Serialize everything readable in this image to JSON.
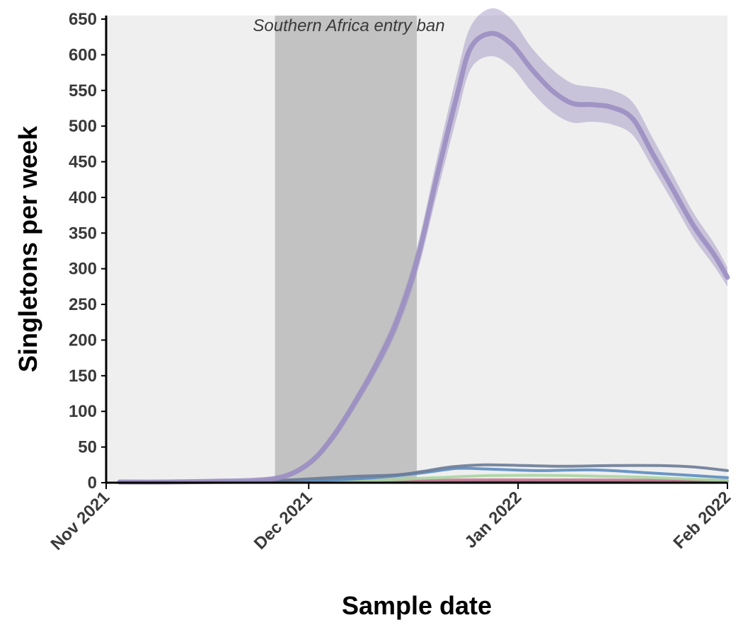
{
  "chart_data": {
    "type": "line",
    "xlabel": "Sample date",
    "ylabel": "Singletons per week",
    "x_ticks": [
      "Nov 2021",
      "Dec 2021",
      "Jan 2022",
      "Feb 2022"
    ],
    "x_range": [
      "2021-11-01",
      "2022-02-01"
    ],
    "y_ticks": [
      0,
      50,
      100,
      150,
      200,
      250,
      300,
      350,
      400,
      450,
      500,
      550,
      600,
      650
    ],
    "ylim": [
      0,
      650
    ],
    "grid": false,
    "shaded_region": {
      "label": "Southern Africa entry ban",
      "start": "2021-11-26",
      "end": "2021-12-17"
    },
    "series": [
      {
        "color": "#9b8fc2",
        "x": [
          "2021-11-03",
          "2021-11-10",
          "2021-11-17",
          "2021-11-22",
          "2021-11-26",
          "2021-11-29",
          "2021-12-02",
          "2021-12-05",
          "2021-12-08",
          "2021-12-11",
          "2021-12-14",
          "2021-12-17",
          "2021-12-20",
          "2021-12-23",
          "2021-12-25",
          "2021-12-28",
          "2021-12-31",
          "2022-01-03",
          "2022-01-06",
          "2022-01-09",
          "2022-01-12",
          "2022-01-15",
          "2022-01-18",
          "2022-01-21",
          "2022-01-24",
          "2022-01-27",
          "2022-01-30",
          "2022-02-01"
        ],
        "values": [
          1,
          1,
          2,
          3,
          6,
          15,
          35,
          70,
          115,
          165,
          225,
          310,
          430,
          545,
          610,
          630,
          615,
          580,
          550,
          532,
          530,
          526,
          510,
          460,
          410,
          360,
          320,
          288
        ],
        "lower": [
          0,
          0,
          1,
          2,
          4,
          11,
          30,
          63,
          107,
          155,
          212,
          292,
          405,
          515,
          580,
          598,
          583,
          548,
          520,
          505,
          506,
          502,
          487,
          440,
          392,
          343,
          304,
          275
        ],
        "upper": [
          2,
          2,
          3,
          4,
          8,
          19,
          40,
          77,
          123,
          175,
          238,
          328,
          455,
          575,
          640,
          665,
          650,
          610,
          580,
          560,
          555,
          550,
          533,
          482,
          430,
          378,
          336,
          302
        ]
      },
      {
        "color": "#6b7b96",
        "x": [
          "2021-11-03",
          "2021-11-15",
          "2021-11-26",
          "2021-12-02",
          "2021-12-08",
          "2021-12-14",
          "2021-12-18",
          "2021-12-22",
          "2021-12-27",
          "2022-01-02",
          "2022-01-08",
          "2022-01-15",
          "2022-01-22",
          "2022-01-27",
          "2022-02-01"
        ],
        "values": [
          1,
          1,
          3,
          6,
          9,
          11,
          16,
          22,
          25,
          24,
          23,
          24,
          24,
          22,
          17
        ]
      },
      {
        "color": "#5b8cc0",
        "x": [
          "2021-11-03",
          "2021-11-15",
          "2021-11-26",
          "2021-12-05",
          "2021-12-12",
          "2021-12-18",
          "2021-12-23",
          "2021-12-28",
          "2022-01-04",
          "2022-01-12",
          "2022-01-20",
          "2022-01-27",
          "2022-02-01"
        ],
        "values": [
          0,
          1,
          2,
          4,
          8,
          14,
          20,
          19,
          17,
          18,
          14,
          10,
          7
        ]
      },
      {
        "color": "#a9d5a1",
        "x": [
          "2021-11-03",
          "2021-11-26",
          "2021-12-10",
          "2021-12-20",
          "2021-12-28",
          "2022-01-08",
          "2022-01-18",
          "2022-01-27",
          "2022-02-01"
        ],
        "values": [
          0,
          1,
          3,
          7,
          10,
          10,
          8,
          5,
          3
        ]
      },
      {
        "color": "#c97a96",
        "x": [
          "2021-11-03",
          "2021-11-26",
          "2021-12-10",
          "2021-12-25",
          "2022-01-10",
          "2022-02-01"
        ],
        "values": [
          1,
          2,
          3,
          4,
          4,
          3
        ]
      },
      {
        "color": "#4c566a",
        "x": [
          "2021-11-03",
          "2021-12-10",
          "2021-12-25",
          "2022-01-15",
          "2022-02-01"
        ],
        "values": [
          0,
          1,
          2,
          2,
          2
        ]
      }
    ]
  }
}
